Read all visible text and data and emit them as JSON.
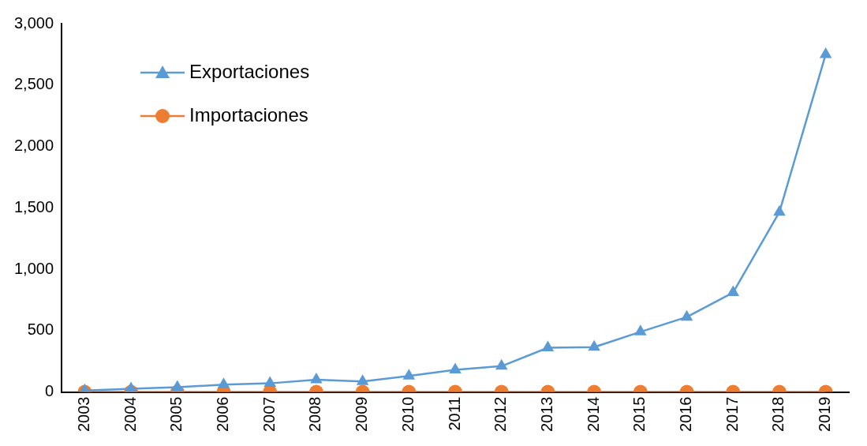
{
  "chart_data": {
    "type": "line",
    "categories": [
      "2003",
      "2004",
      "2005",
      "2006",
      "2007",
      "2008",
      "2009",
      "2010",
      "2011",
      "2012",
      "2013",
      "2014",
      "2015",
      "2016",
      "2017",
      "2018",
      "2019"
    ],
    "series": [
      {
        "name": "Exportaciones",
        "color": "#5b9bd5",
        "marker": "triangle",
        "values": [
          12,
          25,
          38,
          60,
          70,
          100,
          85,
          130,
          180,
          210,
          360,
          365,
          490,
          610,
          810,
          1465,
          2750
        ]
      },
      {
        "name": "Importaciones",
        "color": "#ed7d31",
        "marker": "circle",
        "values": [
          0,
          0,
          0,
          0,
          0,
          0,
          0,
          0,
          0,
          0,
          0,
          0,
          0,
          0,
          0,
          0,
          0
        ]
      }
    ],
    "ylim": [
      0,
      3000
    ],
    "yticks": [
      0,
      500,
      {
        "value": 1000,
        "label": "1,000"
      },
      {
        "value": 1500,
        "label": "1,500"
      },
      {
        "value": 2000,
        "label": "2,000"
      },
      {
        "value": 2500,
        "label": "2,500"
      },
      {
        "value": 3000,
        "label": "3,000"
      }
    ],
    "grid": false,
    "legend": "top left",
    "line_style": "solid"
  }
}
